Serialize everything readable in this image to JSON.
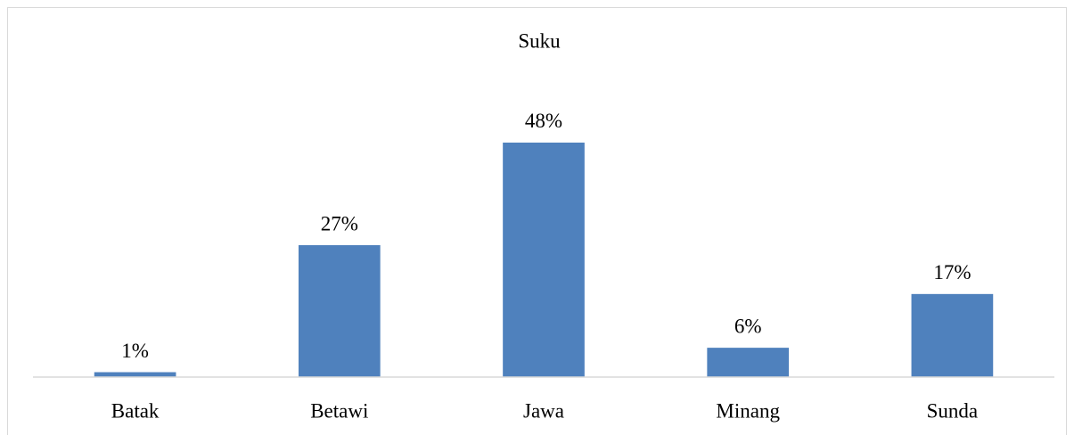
{
  "chart_data": {
    "type": "bar",
    "title": "Suku",
    "categories": [
      "Batak",
      "Betawi",
      "Jawa",
      "Minang",
      "Sunda"
    ],
    "values": [
      1,
      27,
      48,
      6,
      17
    ],
    "value_labels": [
      "1%",
      "27%",
      "48%",
      "6%",
      "17%"
    ],
    "color": "#4f81bd"
  }
}
